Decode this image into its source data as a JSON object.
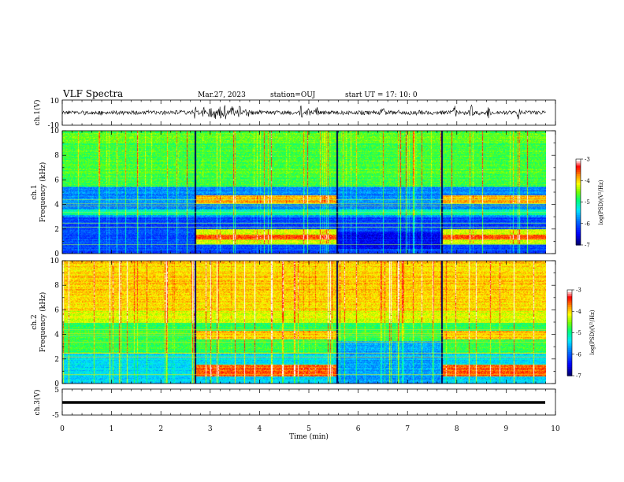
{
  "header": {
    "title": "VLF Spectra",
    "date": "Mar.27, 2023",
    "station": "station=OUJ",
    "start_time": "start  UT  =   17: 10: 0"
  },
  "chart_data": [
    {
      "type": "line",
      "panel": "ch1-waveform",
      "ylabel": "ch.1(V)",
      "ylim": [
        -10,
        10
      ],
      "yticks": [
        "10",
        "-10"
      ],
      "xlim": [
        0,
        10
      ],
      "bursts_min": [
        2.7,
        2.85,
        3.0,
        3.1,
        3.2,
        3.3,
        3.45,
        3.6,
        3.75,
        4.85,
        5.0,
        5.15,
        6.5,
        7.95,
        8.3,
        8.65,
        9.25
      ]
    },
    {
      "type": "heatmap",
      "panel": "ch1-spectrogram",
      "ylabel": "ch.1 Frequency (kHz)",
      "ylim": [
        0,
        10
      ],
      "yticks": [
        "0",
        "2",
        "4",
        "6",
        "8",
        "10"
      ],
      "xlim": [
        0,
        9.8
      ],
      "colorbar": {
        "label": "log(PSD)(V²/Hz)",
        "range": [
          -7,
          -3
        ],
        "ticks": [
          "-3",
          "-4",
          "-5",
          "-6",
          "-7"
        ]
      }
    },
    {
      "type": "heatmap",
      "panel": "ch2-spectrogram",
      "ylabel": "ch.2 Frequency (kHz)",
      "ylim": [
        0,
        10
      ],
      "yticks": [
        "0",
        "2",
        "4",
        "6",
        "8",
        "10"
      ],
      "xlim": [
        0,
        9.8
      ],
      "colorbar": {
        "label": "log(PSD)(V²/Hz)",
        "range": [
          -7,
          -3
        ],
        "ticks": [
          "-3",
          "-4",
          "-5",
          "-6",
          "-7"
        ]
      }
    },
    {
      "type": "line",
      "panel": "ch3-waveform",
      "ylabel": "ch.3(V)",
      "ylim": [
        -5,
        5
      ],
      "yticks": [
        "5",
        "-5"
      ],
      "xlim": [
        0,
        10
      ],
      "values_constant": -0.5
    }
  ],
  "xaxis": {
    "label": "Time  (min)",
    "range": [
      0,
      10
    ],
    "ticks": [
      "0",
      "1",
      "2",
      "3",
      "4",
      "5",
      "6",
      "7",
      "8",
      "9",
      "10"
    ]
  },
  "colors": {
    "scale": [
      "#000080",
      "#0000ff",
      "#0080ff",
      "#00e0ff",
      "#00ff80",
      "#80ff00",
      "#ffff00",
      "#ff8000",
      "#ff0000",
      "#ffffff"
    ]
  }
}
